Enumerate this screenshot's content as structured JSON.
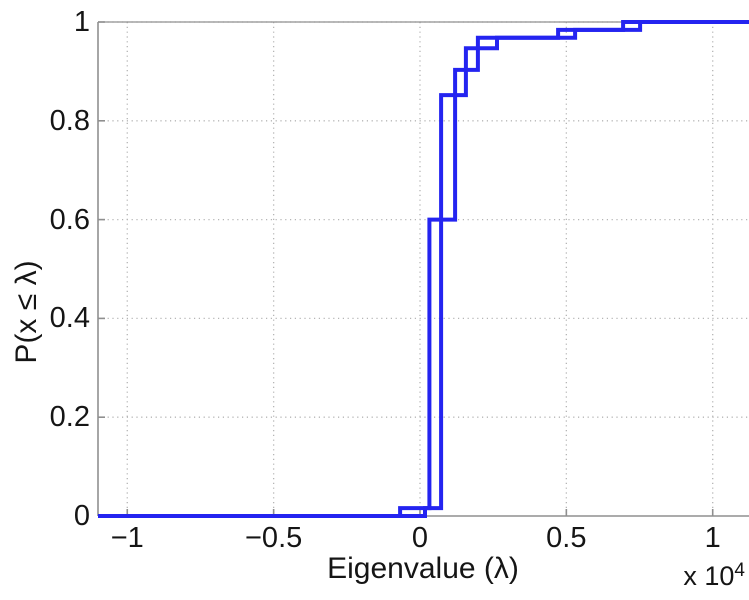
{
  "chart_data": {
    "type": "line",
    "subtype": "empirical-cdf-staircase",
    "title": "",
    "xlabel": "Eigenvalue (λ)",
    "ylabel": "P(x ≤ λ)",
    "axis_multiplier": {
      "base_text": "x 10",
      "exponent": "4"
    },
    "x_unit_scale": 10000,
    "xlim": [
      -11000,
      11240
    ],
    "ylim": [
      0,
      1
    ],
    "grid": "dotted",
    "legend": "none",
    "x_ticks": [
      {
        "value": -10000,
        "label": "−1"
      },
      {
        "value": -5000,
        "label": "−0.5"
      },
      {
        "value": 0,
        "label": "0"
      },
      {
        "value": 5000,
        "label": "0.5"
      },
      {
        "value": 10000,
        "label": "1"
      }
    ],
    "y_ticks": [
      {
        "value": 0,
        "label": "0"
      },
      {
        "value": 0.2,
        "label": "0.2"
      },
      {
        "value": 0.4,
        "label": "0.4"
      },
      {
        "value": 0.6,
        "label": "0.6"
      },
      {
        "value": 0.8,
        "label": "0.8"
      },
      {
        "value": 1,
        "label": "1"
      }
    ],
    "series": [
      {
        "name": "cdf-curve-1",
        "steps": [
          {
            "x": -680,
            "p": 0.016
          },
          {
            "x": 320,
            "p": 0.6
          },
          {
            "x": 1200,
            "p": 0.903
          },
          {
            "x": 1980,
            "p": 0.968
          },
          {
            "x": 4720,
            "p": 0.984
          },
          {
            "x": 6940,
            "p": 1.0
          }
        ]
      },
      {
        "name": "cdf-curve-2",
        "steps": [
          {
            "x": 170,
            "p": 0.016
          },
          {
            "x": 720,
            "p": 0.852
          },
          {
            "x": 1570,
            "p": 0.947
          },
          {
            "x": 2630,
            "p": 0.968
          },
          {
            "x": 5300,
            "p": 0.984
          },
          {
            "x": 7520,
            "p": 1.0
          }
        ]
      }
    ],
    "colors": {
      "line": "#2424f0",
      "grid": "#b5b5b5",
      "spine": "#8f8f8f",
      "text": "#151515"
    }
  }
}
